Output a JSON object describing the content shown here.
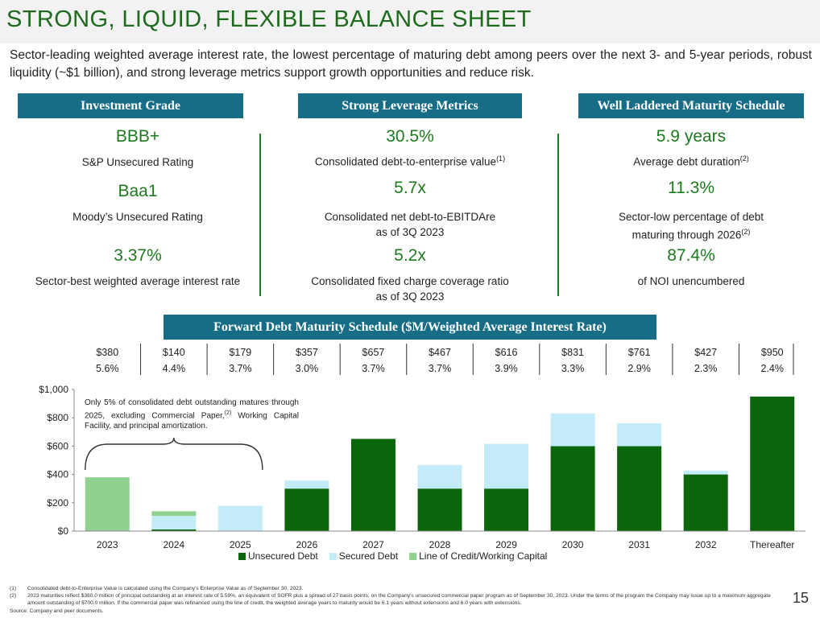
{
  "header": {
    "title": "STRONG, LIQUID, FLEXIBLE BALANCE SHEET",
    "subtitle": "Sector-leading weighted average interest rate, the lowest percentage of maturing debt among peers over the next 3- and 5-year periods, robust liquidity (~$1 billion), and strong leverage metrics support growth opportunities and reduce risk."
  },
  "panels": {
    "investment": {
      "heading": "Investment Grade",
      "m1_value": "BBB+",
      "m1_label": "S&P Unsecured Rating",
      "m2_value": "Baa1",
      "m2_label": "Moody’s Unsecured Rating",
      "m3_value": "3.37%",
      "m3_label": "Sector-best weighted average interest rate"
    },
    "leverage": {
      "heading": "Strong Leverage Metrics",
      "m1_value": "30.5%",
      "m1_label": "Consolidated debt-to-enterprise value",
      "m1_sup": "(1)",
      "m2_value": "5.7x",
      "m2_label_line1": "Consolidated net debt-to-EBITDAre",
      "m2_label_line2": "as of 3Q 2023",
      "m3_value": "5.2x",
      "m3_label_line1": "Consolidated fixed charge coverage ratio",
      "m3_label_line2": "as of 3Q 2023"
    },
    "maturity": {
      "heading": "Well Laddered Maturity Schedule",
      "m1_value": "5.9 years",
      "m1_label": "Average debt duration",
      "m1_sup": "(2)",
      "m2_value": "11.3%",
      "m2_label_line1": "Sector-low percentage of debt",
      "m2_label_line2": "maturing through 2026",
      "m2_sup": "(2)",
      "m3_value": "87.4%",
      "m3_label": "of NOI unencumbered"
    }
  },
  "forward_heading": "Forward Debt Maturity Schedule ($M/Weighted Average Interest Rate)",
  "annotation": {
    "text": "Only 5% of consolidated debt outstanding matures through 2025, excluding Commercial Paper,",
    "sup": "(2)",
    "text2": " Working Capital Facility, and principal amortization."
  },
  "colors": {
    "title": "#1e6b1e",
    "panel_bg": "#176d86",
    "accent": "#1e7a1e",
    "unsecured": "#0b660b",
    "secured": "#c3ebf8",
    "line_of_credit": "#8fd18f"
  },
  "chart_data": {
    "type": "bar",
    "stacked": true,
    "categories": [
      "2023",
      "2024",
      "2025",
      "2026",
      "2027",
      "2028",
      "2029",
      "2030",
      "2031",
      "2032",
      "Thereafter"
    ],
    "series": [
      {
        "name": "Unsecured Debt",
        "values": [
          0,
          12,
          0,
          300,
          651,
          300,
          300,
          600,
          600,
          400,
          950
        ]
      },
      {
        "name": "Secured Debt",
        "values": [
          0,
          95,
          179,
          57,
          0,
          167,
          316,
          231,
          161,
          27,
          0
        ]
      },
      {
        "name": "Line of Credit/Working Capital",
        "values": [
          380,
          33,
          0,
          0,
          0,
          0,
          0,
          0,
          0,
          0,
          0
        ]
      }
    ],
    "totals": [
      "$380",
      "$140",
      "$179",
      "$357",
      "$657",
      "$467",
      "$616",
      "$831",
      "$761",
      "$427",
      "$950"
    ],
    "rates": [
      "5.6%",
      "4.4%",
      "3.7%",
      "3.0%",
      "3.7%",
      "3.7%",
      "3.9%",
      "3.3%",
      "2.9%",
      "2.3%",
      "2.4%"
    ],
    "ylim": [
      0,
      1000
    ],
    "yticks": [
      "$0",
      "$200",
      "$400",
      "$600",
      "$800",
      "$1,000"
    ],
    "ytick_values": [
      0,
      200,
      400,
      600,
      800,
      1000
    ],
    "title": "",
    "xlabel": "",
    "ylabel": "",
    "legend": "bottom-center"
  },
  "footnotes": [
    {
      "num": "(1)",
      "text": "Consolidated debt-to-Enterprise Value is calculated using the Company’s Enterprise Value as of September 30, 2023."
    },
    {
      "num": "(2)",
      "text": "2023 maturities reflect $380.0 million of principal outstanding at an interest rate of 5.59%, an equivalent of SOFR plus a spread of 27 basis points, on the Company’s unsecured commercial paper program as of September 30, 2023. Under the terms of the program the Company may issue up to a maximum aggregate amount outstanding of $700.0 million. If the commercial paper was refinanced using the line of credit, the weighted average years to maturity would be 6.1 years without extensions and 6.0 years with extensions."
    }
  ],
  "source": "Source: Company and peer documents.",
  "page_number": "15"
}
